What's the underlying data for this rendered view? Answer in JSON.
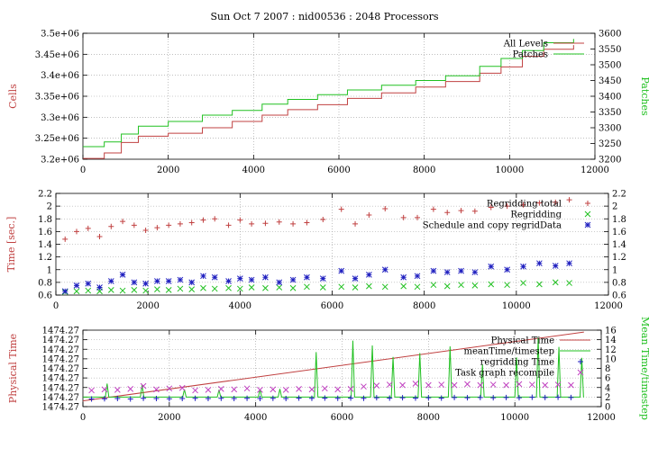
{
  "title": "Sun Oct 7 2007 : nid00536 : 2048 Processors",
  "colors": {
    "red": "#c04040",
    "green": "#20c020",
    "blue": "#2020c0",
    "magenta": "#c040c0",
    "frame": "#000000",
    "grid": "#999999"
  },
  "chart_data": [
    {
      "type": "line",
      "grid": true,
      "legend_position": "top-right",
      "xlim": [
        0,
        12000
      ],
      "ylim": [
        3200000,
        3500000
      ],
      "y2lim": [
        3200,
        3600
      ],
      "xticks": [
        0,
        2000,
        4000,
        6000,
        8000,
        10000,
        12000
      ],
      "yticks": [
        3200000,
        3250000,
        3300000,
        3350000,
        3400000,
        3450000,
        3500000
      ],
      "ytick_labels": [
        "3.2e+06",
        "3.25e+06",
        "3.3e+06",
        "3.35e+06",
        "3.4e+06",
        "3.45e+06",
        "3.5e+06"
      ],
      "y2ticks": [
        3200,
        3250,
        3300,
        3350,
        3400,
        3450,
        3500,
        3550,
        3600
      ],
      "ylabel": "Cells",
      "y2label": "Patches",
      "series": [
        {
          "name": "All Levels",
          "axis": "y",
          "color": "#c04040",
          "x": [
            0,
            500,
            900,
            1300,
            2000,
            2800,
            3500,
            4200,
            4800,
            5500,
            6200,
            7000,
            7800,
            8500,
            9300,
            9800,
            10300,
            10800,
            11500
          ],
          "y": [
            3202000,
            3215000,
            3240000,
            3255000,
            3262000,
            3275000,
            3290000,
            3305000,
            3318000,
            3330000,
            3345000,
            3358000,
            3372000,
            3385000,
            3405000,
            3420000,
            3445000,
            3462000,
            3472000
          ]
        },
        {
          "name": "Patches",
          "axis": "y2",
          "color": "#20c020",
          "x": [
            0,
            500,
            900,
            1300,
            2000,
            2800,
            3500,
            4200,
            4800,
            5500,
            6200,
            7000,
            7800,
            8500,
            9300,
            9800,
            10300,
            10800,
            11500
          ],
          "y": [
            3240,
            3255,
            3280,
            3305,
            3320,
            3340,
            3355,
            3375,
            3390,
            3405,
            3420,
            3435,
            3450,
            3465,
            3495,
            3520,
            3545,
            3570,
            3582
          ]
        }
      ]
    },
    {
      "type": "scatter",
      "grid": true,
      "legend_position": "top-right",
      "xlim": [
        0,
        12000
      ],
      "ylim": [
        0.6,
        2.2
      ],
      "y2lim": [
        0.6,
        2.2
      ],
      "xticks": [
        0,
        2000,
        4000,
        6000,
        8000,
        10000,
        12000
      ],
      "yticks": [
        0.6,
        0.8,
        1,
        1.2,
        1.4,
        1.6,
        1.8,
        2,
        2.2
      ],
      "ylabel": "Time [sec.]",
      "series": [
        {
          "name": "Regridding total",
          "marker": "+",
          "color": "#c04040",
          "x": [
            200,
            450,
            700,
            950,
            1200,
            1450,
            1700,
            1950,
            2200,
            2450,
            2700,
            2950,
            3200,
            3450,
            3750,
            4000,
            4250,
            4550,
            4850,
            5150,
            5450,
            5800,
            6200,
            6500,
            6800,
            7150,
            7550,
            7850,
            8200,
            8500,
            8800,
            9100,
            9450,
            9800,
            10150,
            10500,
            10850,
            11150
          ],
          "y": [
            1.48,
            1.6,
            1.65,
            1.52,
            1.68,
            1.76,
            1.7,
            1.62,
            1.66,
            1.7,
            1.72,
            1.74,
            1.78,
            1.8,
            1.7,
            1.78,
            1.72,
            1.73,
            1.75,
            1.72,
            1.74,
            1.79,
            1.95,
            1.72,
            1.86,
            1.96,
            1.82,
            1.82,
            1.95,
            1.9,
            1.93,
            1.92,
            1.98,
            2.0,
            2.02,
            2.05,
            2.06,
            2.1
          ]
        },
        {
          "name": "Regridding",
          "marker": "x",
          "color": "#20c020",
          "x": [
            200,
            450,
            700,
            950,
            1200,
            1450,
            1700,
            1950,
            2200,
            2450,
            2700,
            2950,
            3200,
            3450,
            3750,
            4000,
            4250,
            4550,
            4850,
            5150,
            5450,
            5800,
            6200,
            6500,
            6800,
            7150,
            7550,
            7850,
            8200,
            8500,
            8800,
            9100,
            9450,
            9800,
            10150,
            10500,
            10850,
            11150
          ],
          "y": [
            0.65,
            0.66,
            0.67,
            0.66,
            0.68,
            0.67,
            0.68,
            0.67,
            0.69,
            0.68,
            0.7,
            0.69,
            0.71,
            0.7,
            0.71,
            0.7,
            0.72,
            0.71,
            0.72,
            0.71,
            0.73,
            0.72,
            0.73,
            0.72,
            0.74,
            0.73,
            0.74,
            0.73,
            0.76,
            0.74,
            0.76,
            0.75,
            0.77,
            0.76,
            0.79,
            0.77,
            0.8,
            0.79
          ]
        },
        {
          "name": "Schedule and copy regridData",
          "marker": "*",
          "color": "#2020c0",
          "x": [
            200,
            450,
            700,
            950,
            1200,
            1450,
            1700,
            1950,
            2200,
            2450,
            2700,
            2950,
            3200,
            3450,
            3750,
            4000,
            4250,
            4550,
            4850,
            5150,
            5450,
            5800,
            6200,
            6500,
            6800,
            7150,
            7550,
            7850,
            8200,
            8500,
            8800,
            9100,
            9450,
            9800,
            10150,
            10500,
            10850,
            11150
          ],
          "y": [
            0.66,
            0.75,
            0.78,
            0.72,
            0.82,
            0.92,
            0.8,
            0.78,
            0.82,
            0.82,
            0.84,
            0.8,
            0.9,
            0.88,
            0.82,
            0.86,
            0.84,
            0.88,
            0.8,
            0.84,
            0.88,
            0.86,
            0.98,
            0.86,
            0.92,
            1.0,
            0.88,
            0.9,
            0.98,
            0.96,
            0.98,
            0.96,
            1.05,
            1.0,
            1.05,
            1.1,
            1.06,
            1.1
          ]
        }
      ]
    },
    {
      "type": "line",
      "grid": true,
      "legend_position": "top-right",
      "xlim": [
        0,
        12000
      ],
      "y2lim": [
        0,
        16
      ],
      "xticks": [
        0,
        2000,
        4000,
        6000,
        8000,
        10000,
        12000
      ],
      "yticks": [
        0,
        1,
        2,
        3,
        4,
        5,
        6,
        7,
        8
      ],
      "ytick_labels": [
        "1474.27",
        "1474.27",
        "1474.27",
        "1474.27",
        "1474.27",
        "1474.27",
        "1474.27",
        "1474.27",
        "1474.27"
      ],
      "y2ticks": [
        0,
        2,
        4,
        6,
        8,
        10,
        12,
        14,
        16
      ],
      "ylabel": "Physical Time",
      "y2label": "Mean Time/timestep",
      "series": [
        {
          "name": "Physical Time",
          "marker": "line",
          "color": "#c04040",
          "axis": "y2",
          "x": [
            0,
            11600
          ],
          "y": [
            1.2,
            15.6
          ]
        },
        {
          "name": "meanTime/timestep",
          "marker": "line",
          "color": "#20c020",
          "axis": "y2",
          "x": [
            0,
            11600
          ],
          "y": [
            2,
            2
          ],
          "spikes": {
            "x": [
              560,
              1370,
              2350,
              3150,
              4100,
              4560,
              5400,
              6250,
              6700,
              7180,
              7800,
              8500,
              9250,
              10040,
              10540,
              11020,
              11550
            ],
            "y": [
              4.8,
              4.5,
              3.6,
              3.5,
              3.6,
              3.7,
              11.4,
              13.8,
              12.8,
              10.4,
              11.2,
              12.6,
              8.8,
              10.3,
              14.4,
              12.5,
              10.2
            ]
          }
        },
        {
          "name": "regridding Time",
          "marker": "+",
          "color": "#2020c0",
          "axis": "y2",
          "x": [
            200,
            500,
            800,
            1100,
            1400,
            1700,
            2000,
            2300,
            2600,
            2900,
            3200,
            3500,
            3800,
            4100,
            4400,
            4700,
            5000,
            5300,
            5600,
            5900,
            6200,
            6500,
            6800,
            7100,
            7400,
            7700,
            8000,
            8300,
            8600,
            8900,
            9200,
            9500,
            9800,
            10100,
            10400,
            10700,
            11000,
            11300
          ],
          "y": [
            1.6,
            1.65,
            1.7,
            1.6,
            1.75,
            1.7,
            1.65,
            1.7,
            1.75,
            1.7,
            1.75,
            1.7,
            1.75,
            1.7,
            1.75,
            1.7,
            1.8,
            1.75,
            1.8,
            1.75,
            1.8,
            1.75,
            1.85,
            1.8,
            1.85,
            1.8,
            1.85,
            1.8,
            1.9,
            1.85,
            1.9,
            1.85,
            1.9,
            1.85,
            1.95,
            1.9,
            1.95,
            1.9
          ]
        },
        {
          "name": "Task graph recompile",
          "marker": "x",
          "color": "#c040c0",
          "axis": "y2",
          "x": [
            200,
            500,
            800,
            1100,
            1400,
            1700,
            2000,
            2300,
            2600,
            2900,
            3200,
            3500,
            3800,
            4100,
            4400,
            4700,
            5000,
            5300,
            5600,
            5900,
            6200,
            6500,
            6800,
            7100,
            7400,
            7700,
            8000,
            8300,
            8600,
            8900,
            9200,
            9500,
            9800,
            10100,
            10400,
            10700,
            11000,
            11300
          ],
          "y": [
            3.4,
            3.6,
            3.5,
            3.7,
            4.3,
            3.6,
            3.8,
            3.9,
            3.4,
            3.5,
            3.7,
            3.6,
            3.8,
            3.5,
            3.6,
            3.5,
            3.7,
            3.6,
            3.8,
            3.6,
            3.7,
            4.2,
            4.4,
            4.6,
            4.5,
            4.8,
            4.5,
            4.6,
            4.5,
            4.7,
            4.5,
            4.6,
            4.5,
            4.7,
            4.6,
            4.5,
            4.6,
            4.5
          ]
        }
      ]
    }
  ]
}
